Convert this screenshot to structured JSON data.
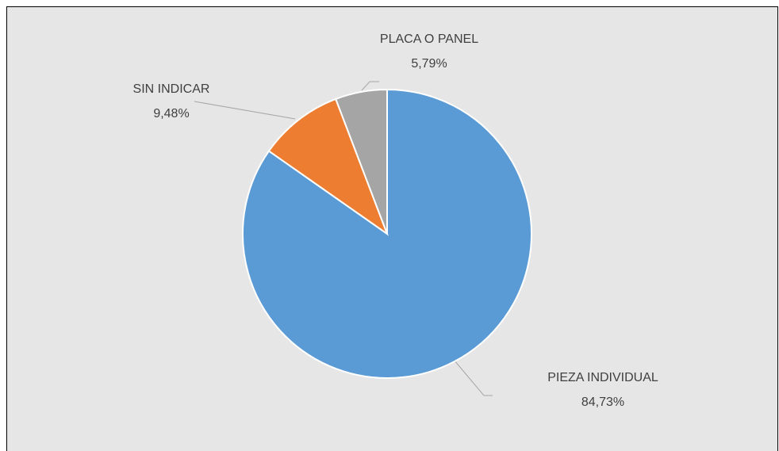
{
  "chart_data": {
    "type": "pie",
    "categories": [
      "PIEZA INDIVIDUAL",
      "SIN INDICAR",
      "PLACA O PANEL"
    ],
    "values": [
      84.73,
      9.48,
      5.79
    ],
    "value_labels": [
      "84,73%",
      "9,48%",
      "5,79%"
    ],
    "colors": [
      "#5b9bd5",
      "#ed7d31",
      "#a5a5a5"
    ]
  }
}
